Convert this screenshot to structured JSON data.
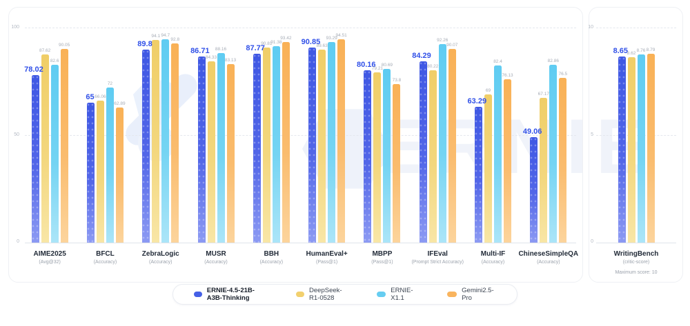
{
  "watermark": {
    "text": "ERNIE"
  },
  "axis_main": {
    "ticks": [
      "100",
      "50",
      "0"
    ]
  },
  "axis_right": {
    "ticks": [
      "10",
      "5",
      "0"
    ]
  },
  "series": [
    {
      "name": "ERNIE-4.5-21B-A3B-Thinking",
      "color": "#4560e6",
      "emphasis": true
    },
    {
      "name": "DeepSeek-R1-0528",
      "color": "#f2d06e",
      "emphasis": false
    },
    {
      "name": "ERNIE-X1.1",
      "color": "#66cdf1",
      "emphasis": false
    },
    {
      "name": "Gemini2.5-Pro",
      "color": "#f9b45e",
      "emphasis": false
    }
  ],
  "chart_data": {
    "type": "bar",
    "legend_position": "bottom",
    "panels": [
      {
        "id": "main",
        "ylim": [
          0,
          100
        ],
        "gridlines": [
          100,
          50,
          0
        ]
      },
      {
        "id": "right",
        "ylim": [
          0,
          10
        ],
        "gridlines": [
          10,
          5,
          0
        ]
      }
    ],
    "series_names": [
      "ERNIE-4.5-21B-A3B-Thinking",
      "DeepSeek-R1-0528",
      "ERNIE-X1.1",
      "Gemini2.5-Pro"
    ],
    "groups": [
      {
        "label": "AIME2025",
        "sublabel": "(Avg@32)",
        "panel": "main",
        "values": [
          78.02,
          87.62,
          82.6,
          90.05
        ]
      },
      {
        "label": "BFCL",
        "sublabel": "(Accuracy)",
        "panel": "main",
        "values": [
          65,
          66.06,
          72,
          62.89
        ]
      },
      {
        "label": "ZebraLogic",
        "sublabel": "(Accuracy)",
        "panel": "main",
        "values": [
          89.8,
          94.1,
          94.7,
          92.8
        ]
      },
      {
        "label": "MUSR",
        "sublabel": "(Accuracy)",
        "panel": "main",
        "values": [
          86.71,
          84.33,
          88.16,
          83.13
        ]
      },
      {
        "label": "BBH",
        "sublabel": "(Accuracy)",
        "panel": "main",
        "values": [
          87.77,
          90.81,
          91.38,
          93.42
        ]
      },
      {
        "label": "HumanEval+",
        "sublabel": "(Pass@1)",
        "panel": "main",
        "values": [
          90.85,
          89.63,
          93.29,
          94.51
        ]
      },
      {
        "label": "MBPP",
        "sublabel": "(Pass@1)",
        "panel": "main",
        "values": [
          80.16,
          79.21,
          80.69,
          73.8
        ]
      },
      {
        "label": "IFEval",
        "sublabel": "(Prompt Strict Accuracy)",
        "panel": "main",
        "values": [
          84.29,
          80.22,
          92.26,
          90.07
        ]
      },
      {
        "label": "Multi-IF",
        "sublabel": "(Accuracy)",
        "panel": "main",
        "values": [
          63.29,
          69,
          82.4,
          76.13
        ]
      },
      {
        "label": "ChineseSimpleQA",
        "sublabel": "(Accuracy)",
        "panel": "main",
        "values": [
          49.06,
          67.17,
          82.86,
          76.5
        ]
      },
      {
        "label": "WritingBench",
        "sublabel": "(critic-score)",
        "panel": "right",
        "values": [
          8.65,
          8.62,
          8.76,
          8.79
        ],
        "note": "Maximum score: 10"
      }
    ]
  },
  "legend": {
    "items": [
      {
        "label": "ERNIE-4.5-21B-A3B-Thinking"
      },
      {
        "label": "DeepSeek-R1-0528"
      },
      {
        "label": "ERNIE-X1.1"
      },
      {
        "label": "Gemini2.5-Pro"
      }
    ]
  }
}
